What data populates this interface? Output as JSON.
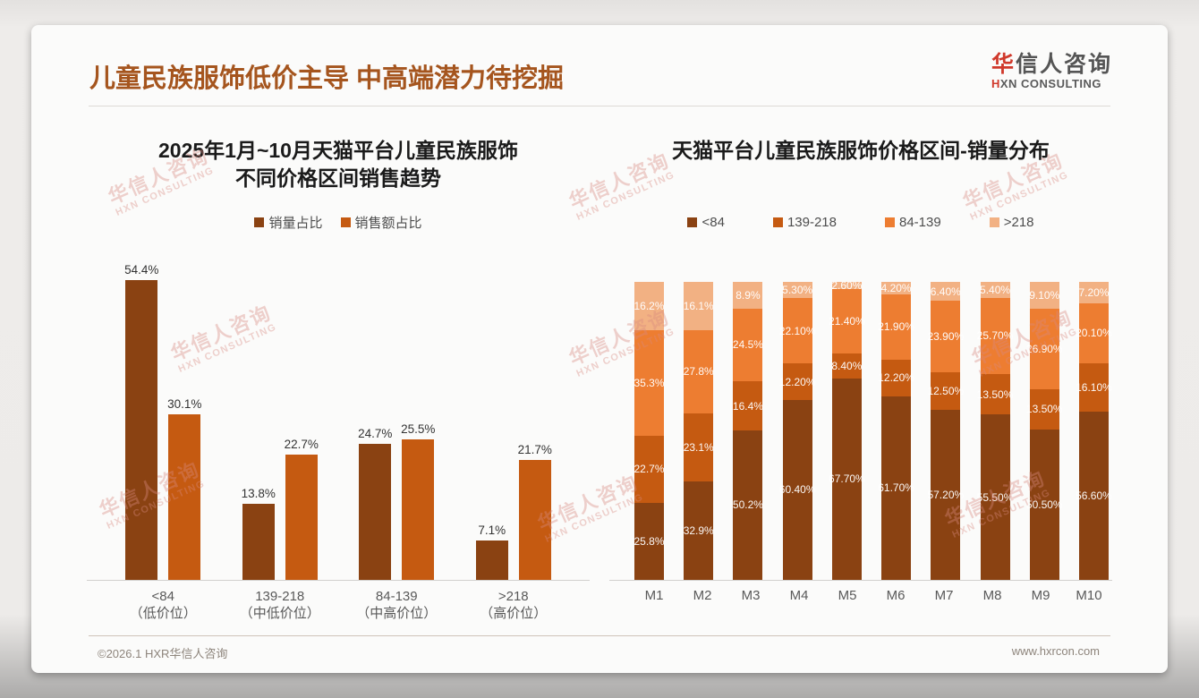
{
  "page": {
    "header_title": "儿童民族服饰低价主导 中高端潜力待挖掘",
    "footer_left": "©2026.1 HXR华信人咨询",
    "footer_right": "www.hxrcon.com"
  },
  "logo": {
    "cn_first": "华",
    "cn_rest": "信人咨询",
    "en_first": "H",
    "en_rest": "XN CONSULTING"
  },
  "watermark": {
    "line1": "华信人咨询",
    "line2": "HXN CONSULTING"
  },
  "colors": {
    "title": "#A5551E",
    "brand_red": "#D0392B",
    "series_dark_brown": "#8A4212",
    "series_orange": "#C55A11",
    "series_light_orange": "#ED7D31",
    "series_peach": "#F2B183"
  },
  "chart_data": [
    {
      "type": "bar",
      "title_line1": "2025年1月~10月天猫平台儿童民族服饰",
      "title_line2": "不同价格区间销售趋势",
      "legend": [
        "销量占比",
        "销售额占比"
      ],
      "legend_position": "top",
      "grid": false,
      "ylim": [
        0,
        60
      ],
      "categories": [
        [
          "<84",
          "（低价位）"
        ],
        [
          "139-218",
          "（中低价位）"
        ],
        [
          "84-139",
          "（中高价位）"
        ],
        [
          ">218",
          "（高价位）"
        ]
      ],
      "series": [
        {
          "name": "销量占比",
          "color": "#8A4212",
          "values": [
            54.4,
            13.8,
            24.7,
            7.1
          ],
          "labels": [
            "54.4%",
            "13.8%",
            "24.7%",
            "7.1%"
          ]
        },
        {
          "name": "销售额占比",
          "color": "#C55A11",
          "values": [
            30.1,
            22.7,
            25.5,
            21.7
          ],
          "labels": [
            "30.1%",
            "22.7%",
            "25.5%",
            "21.7%"
          ]
        }
      ]
    },
    {
      "type": "bar",
      "subtype": "stacked-100",
      "title": "天猫平台儿童民族服饰价格区间-销量分布",
      "legend": [
        "<84",
        "139-218",
        "84-139",
        ">218"
      ],
      "legend_position": "top",
      "grid": false,
      "ylim": [
        0,
        100
      ],
      "categories": [
        "M1",
        "M2",
        "M3",
        "M4",
        "M5",
        "M6",
        "M7",
        "M8",
        "M9",
        "M10"
      ],
      "series": [
        {
          "name": "<84",
          "color": "#8A4212",
          "values": [
            25.8,
            32.9,
            50.2,
            60.4,
            67.7,
            61.7,
            57.2,
            55.5,
            50.5,
            56.6
          ],
          "labels": [
            "25.8%",
            "32.9%",
            "50.2%",
            "60.40%",
            "67.70%",
            "61.70%",
            "57.20%",
            "55.50%",
            "50.50%",
            "56.60%"
          ]
        },
        {
          "name": "139-218",
          "color": "#C55A11",
          "values": [
            22.7,
            23.1,
            16.4,
            12.2,
            8.4,
            12.2,
            12.5,
            13.5,
            13.5,
            16.1
          ],
          "labels": [
            "22.7%",
            "23.1%",
            "16.4%",
            "12.20%",
            "8.40%",
            "12.20%",
            "12.50%",
            "13.50%",
            "13.50%",
            "16.10%"
          ]
        },
        {
          "name": "84-139",
          "color": "#ED7D31",
          "values": [
            35.3,
            27.8,
            24.5,
            22.1,
            21.4,
            21.9,
            23.9,
            25.7,
            26.9,
            20.1
          ],
          "labels": [
            "35.3%",
            "27.8%",
            "24.5%",
            "22.10%",
            "21.40%",
            "21.90%",
            "23.90%",
            "25.70%",
            "26.90%",
            "20.10%"
          ]
        },
        {
          "name": ">218",
          "color": "#F2B183",
          "values": [
            16.2,
            16.1,
            8.9,
            5.3,
            2.6,
            4.2,
            6.4,
            5.4,
            9.1,
            7.2
          ],
          "labels": [
            "16.2%",
            "16.1%",
            "8.9%",
            "5.30%",
            "2.60%",
            "4.20%",
            "6.40%",
            "5.40%",
            "9.10%",
            "7.20%"
          ]
        }
      ]
    }
  ]
}
